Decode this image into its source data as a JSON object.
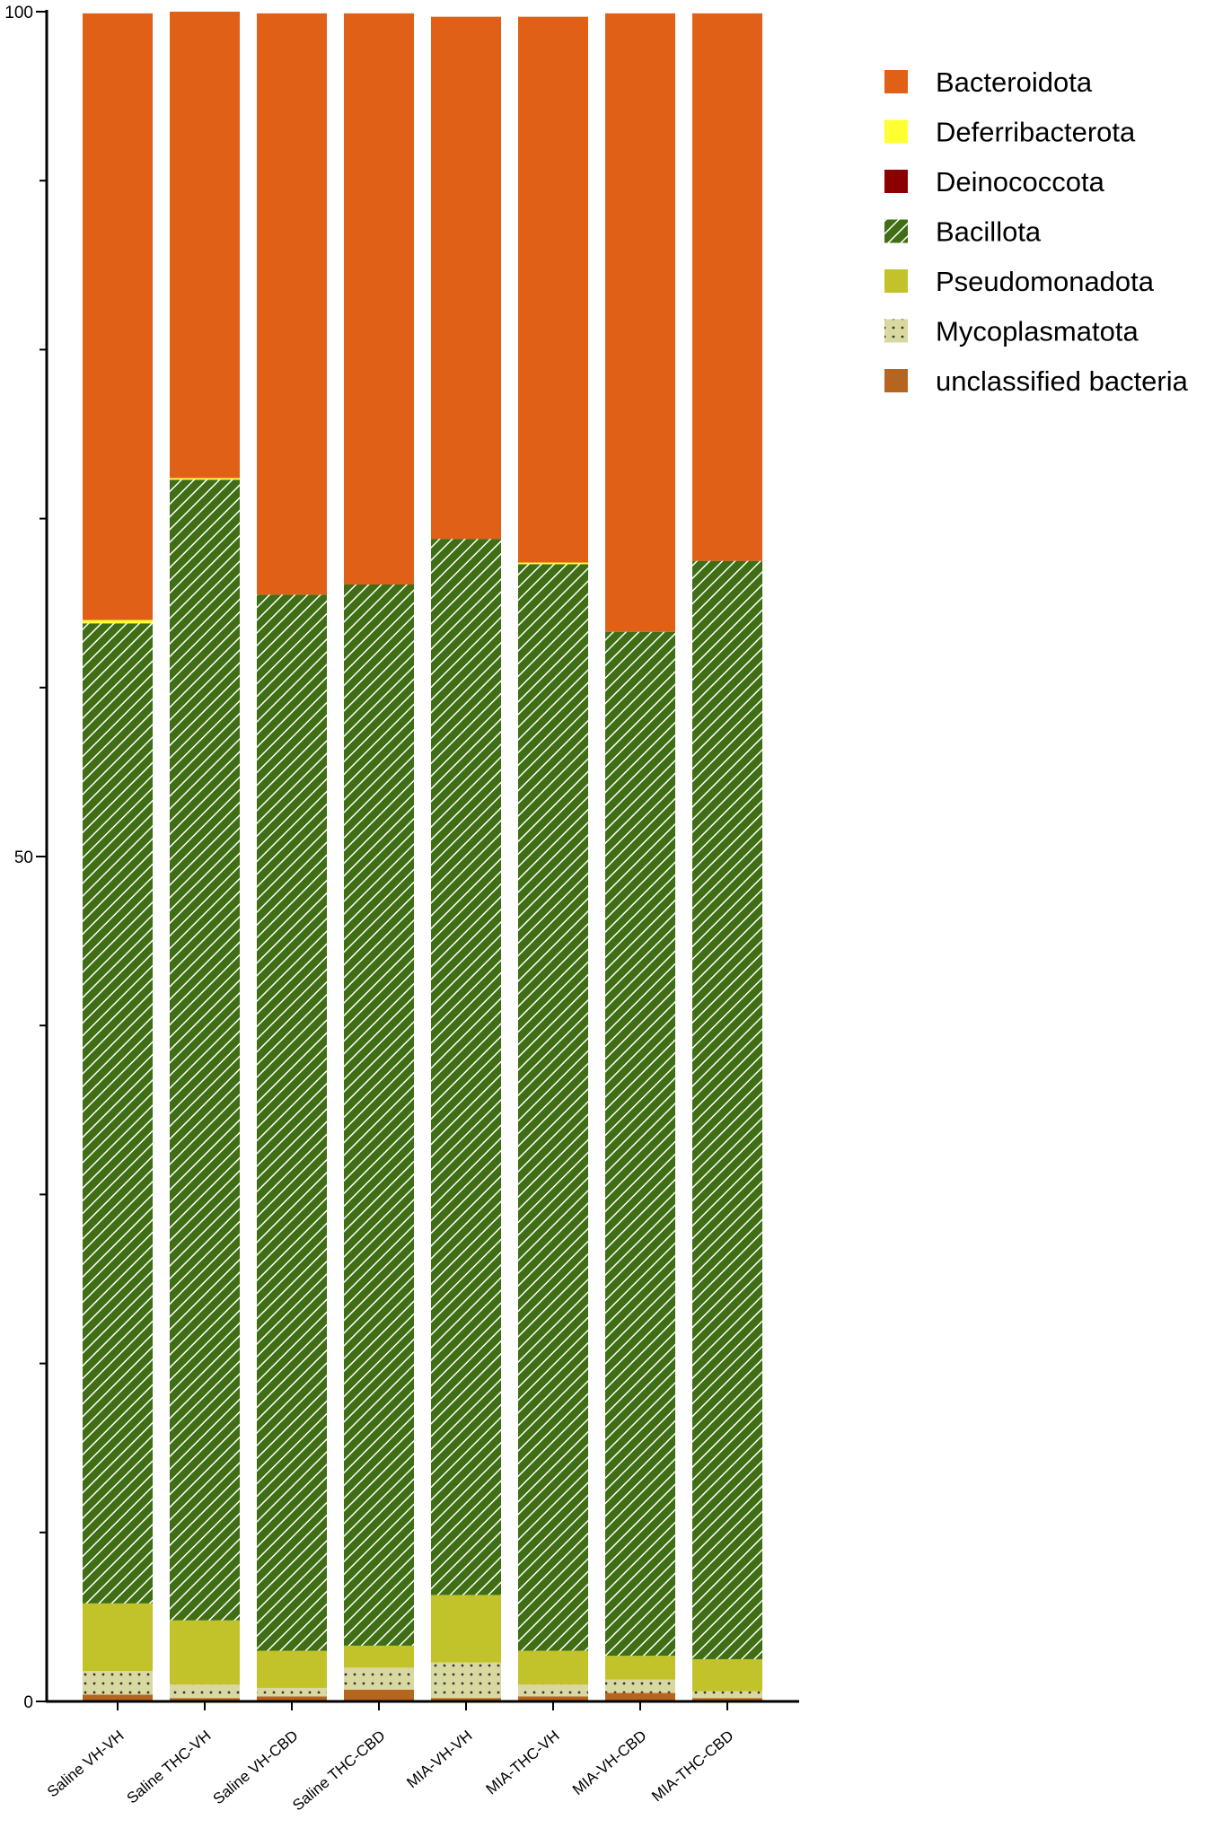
{
  "chart_data": {
    "type": "bar",
    "stacked": true,
    "categories": [
      "Saline VH-VH",
      "Saline THC-VH",
      "Saline VH-CBD",
      "Saline THC-CBD",
      "MIA-VH-VH",
      "MIA-THC-VH",
      "MIA-VH-CBD",
      "MIA-THC-CBD"
    ],
    "series": [
      {
        "name": "unclassified bacteria",
        "color": "#b5651d",
        "pattern": "solid",
        "values": [
          0.4,
          0.2,
          0.3,
          0.7,
          0.2,
          0.3,
          0.5,
          0.2
        ]
      },
      {
        "name": "Mycoplasmatota",
        "color": "#d8d8a0",
        "pattern": "dots",
        "values": [
          1.4,
          0.8,
          0.5,
          1.3,
          2.1,
          0.7,
          0.8,
          0.4
        ]
      },
      {
        "name": "Pseudomonadota",
        "color": "#c2c22a",
        "pattern": "solid",
        "values": [
          4.0,
          3.8,
          2.2,
          1.3,
          4.0,
          2.0,
          1.4,
          1.9
        ]
      },
      {
        "name": "Bacillota",
        "color": "#3f6e14",
        "pattern": "hatch",
        "values": [
          58.0,
          67.5,
          62.5,
          62.8,
          62.5,
          64.3,
          60.6,
          65.0
        ]
      },
      {
        "name": "Deinococcota",
        "color": "#8b0000",
        "pattern": "solid",
        "values": [
          0,
          0,
          0,
          0,
          0,
          0,
          0,
          0
        ]
      },
      {
        "name": "Deferribacterota",
        "color": "#ffff33",
        "pattern": "solid",
        "values": [
          0.2,
          0.1,
          0,
          0,
          0,
          0.1,
          0,
          0
        ]
      },
      {
        "name": "Bacteroidota",
        "color": "#e06018",
        "pattern": "solid",
        "values": [
          35.9,
          27.6,
          34.4,
          33.8,
          30.9,
          32.3,
          36.6,
          32.4
        ]
      }
    ],
    "legend_order": [
      "Bacteroidota",
      "Deferribacterota",
      "Deinococcota",
      "Bacillota",
      "Pseudomonadota",
      "Mycoplasmatota",
      "unclassified bacteria"
    ],
    "yticks": [
      0,
      50,
      100
    ],
    "ylim": [
      0,
      100
    ],
    "grid": false,
    "legend_position": "right"
  }
}
